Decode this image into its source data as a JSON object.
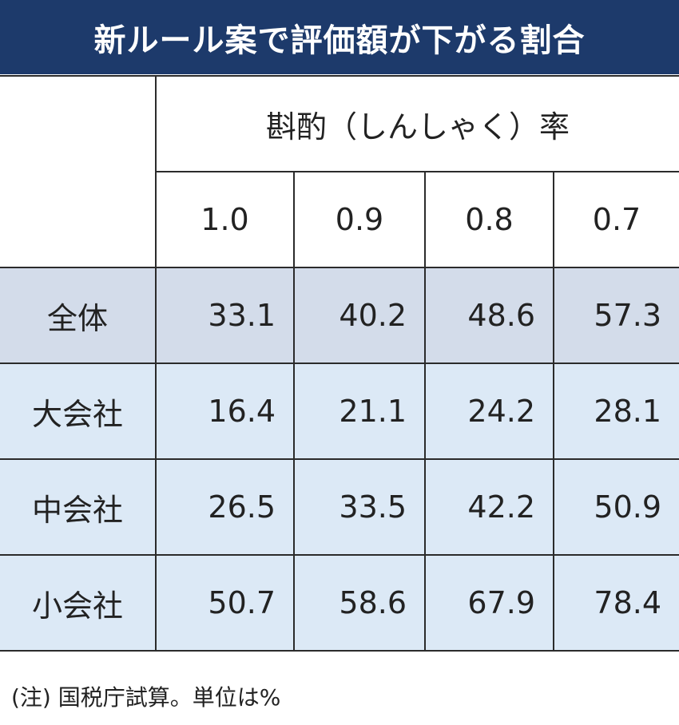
{
  "title": "新ルール案で評価額が下がる割合",
  "table": {
    "group_header": "斟酌（しんしゃく）率",
    "columns": [
      "1.0",
      "0.9",
      "0.8",
      "0.7"
    ],
    "rows": [
      {
        "label": "全体",
        "values": [
          "33.1",
          "40.2",
          "48.6",
          "57.3"
        ]
      },
      {
        "label": "大会社",
        "values": [
          "16.4",
          "21.1",
          "24.2",
          "28.1"
        ]
      },
      {
        "label": "中会社",
        "values": [
          "26.5",
          "33.5",
          "42.2",
          "50.9"
        ]
      },
      {
        "label": "小会社",
        "values": [
          "50.7",
          "58.6",
          "67.9",
          "78.4"
        ]
      }
    ]
  },
  "note": "(注) 国税庁試算。単位は%"
}
